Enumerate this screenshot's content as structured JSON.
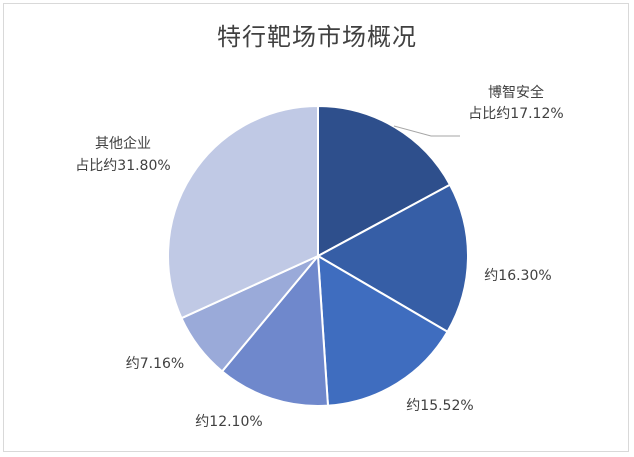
{
  "chart_data": {
    "type": "pie",
    "title": "特行靶场市场概况",
    "slices": [
      {
        "name": "博智安全",
        "value": 17.12,
        "label_lines": [
          "博智安全",
          "占比约17.12%"
        ],
        "color": "#2e4f8c"
      },
      {
        "name": "",
        "value": 16.3,
        "label_lines": [
          "约16.30%"
        ],
        "color": "#365ea6"
      },
      {
        "name": "",
        "value": 15.52,
        "label_lines": [
          "约15.52%"
        ],
        "color": "#3f6dbf"
      },
      {
        "name": "",
        "value": 12.1,
        "label_lines": [
          "约12.10%"
        ],
        "color": "#6f88cc"
      },
      {
        "name": "",
        "value": 7.16,
        "label_lines": [
          "约7.16%"
        ],
        "color": "#9aaad9"
      },
      {
        "name": "其他企业",
        "value": 31.8,
        "label_lines": [
          "其他企业",
          "占比约31.80%"
        ],
        "color": "#c0c9e5"
      }
    ],
    "start_angle_deg": 0,
    "direction": "clockwise",
    "legend": "none",
    "has_leader_line_first_slice": true
  }
}
